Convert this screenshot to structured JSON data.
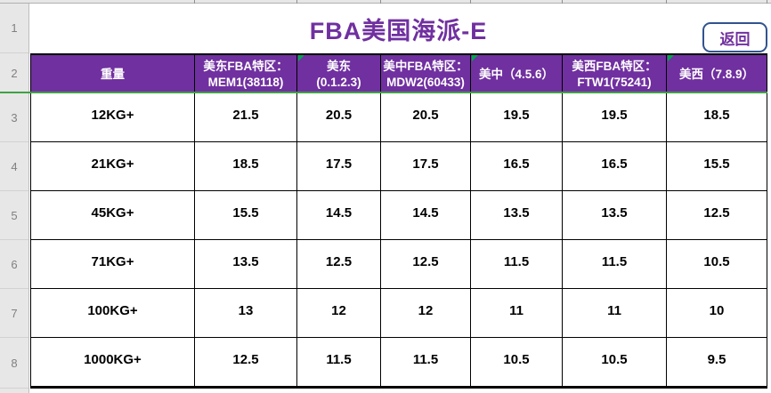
{
  "title": "FBA美国海派-E",
  "back_button_label": "返回",
  "sheet": {
    "row_numbers": [
      "1",
      "2",
      "3",
      "4",
      "5",
      "6",
      "7",
      "8"
    ]
  },
  "table": {
    "headers": [
      {
        "line1": "重量",
        "line2": ""
      },
      {
        "line1": "美东FBA特区：",
        "line2": "MEM1(38118)"
      },
      {
        "line1": "美东",
        "line2": "(0.1.2.3)"
      },
      {
        "line1": "美中FBA特区：",
        "line2": "MDW2(60433)"
      },
      {
        "line1": "美中（4.5.6）",
        "line2": ""
      },
      {
        "line1": "美西FBA特区：",
        "line2": "FTW1(75241)"
      },
      {
        "line1": "美西（7.8.9）",
        "line2": ""
      }
    ],
    "rows": [
      [
        "12KG+",
        "21.5",
        "20.5",
        "20.5",
        "19.5",
        "19.5",
        "18.5"
      ],
      [
        "21KG+",
        "18.5",
        "17.5",
        "17.5",
        "16.5",
        "16.5",
        "15.5"
      ],
      [
        "45KG+",
        "15.5",
        "14.5",
        "14.5",
        "13.5",
        "13.5",
        "12.5"
      ],
      [
        "71KG+",
        "13.5",
        "12.5",
        "12.5",
        "11.5",
        "11.5",
        "10.5"
      ],
      [
        "100KG+",
        "13",
        "12",
        "12",
        "11",
        "11",
        "10"
      ],
      [
        "1000KG+",
        "12.5",
        "11.5",
        "11.5",
        "10.5",
        "10.5",
        "9.5"
      ]
    ],
    "error_flag_columns": [
      2,
      4,
      6
    ]
  },
  "colors": {
    "header_purple": "#7030A0",
    "title_purple": "#7030A0",
    "freeze_line_green": "#3FA243",
    "flag_green": "#00A651",
    "button_border_blue": "#31538F"
  }
}
